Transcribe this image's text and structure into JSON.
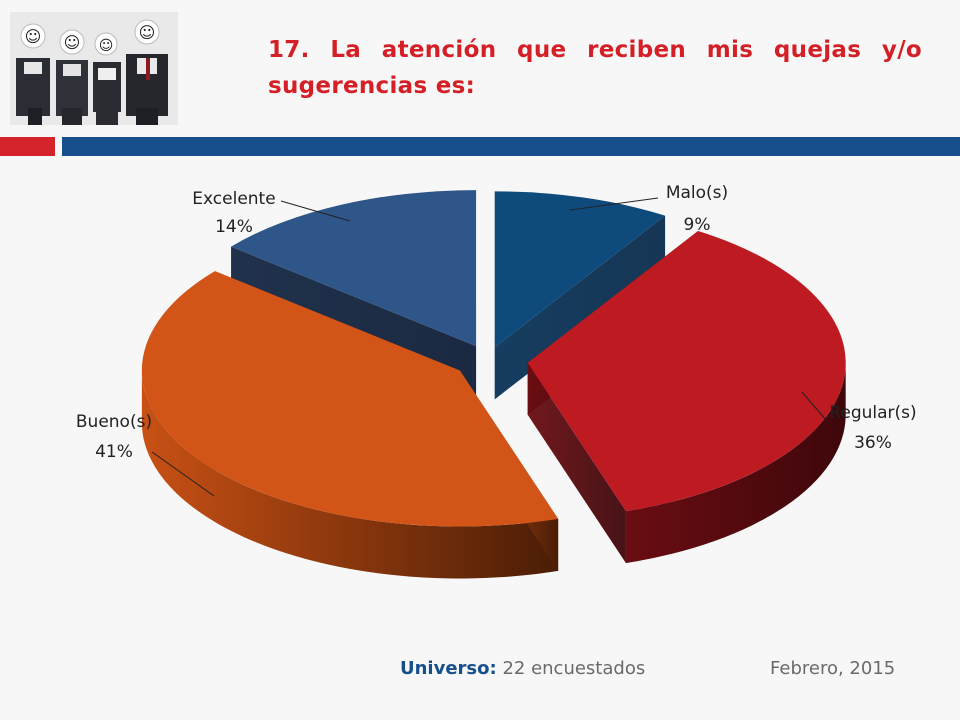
{
  "slide": {
    "title": "17. La atención que reciben mis quejas y/o sugerencias es:",
    "colors": {
      "accent_red": "#d4232a",
      "accent_blue": "#174f8c"
    }
  },
  "photo": {
    "icon": "smiley-face-icon",
    "people": 4
  },
  "chart_data": {
    "type": "pie",
    "style": "3d-exploded",
    "title": "",
    "slices": [
      {
        "name": "Malo(s)",
        "value": 9,
        "label": "9%",
        "color": "#0f4a7d"
      },
      {
        "name": "Regular(s)",
        "value": 36,
        "label": "36%",
        "color": "#be1a22"
      },
      {
        "name": "Bueno(s)",
        "value": 41,
        "label": "41%",
        "color": "#d35417"
      },
      {
        "name": "Excelente",
        "value": 14,
        "label": "14%",
        "color": "#2e5689"
      }
    ],
    "legend": "none"
  },
  "footer": {
    "universe_label": "Universo:",
    "universe_value": "22 encuestados",
    "date": "Febrero, 2015"
  }
}
